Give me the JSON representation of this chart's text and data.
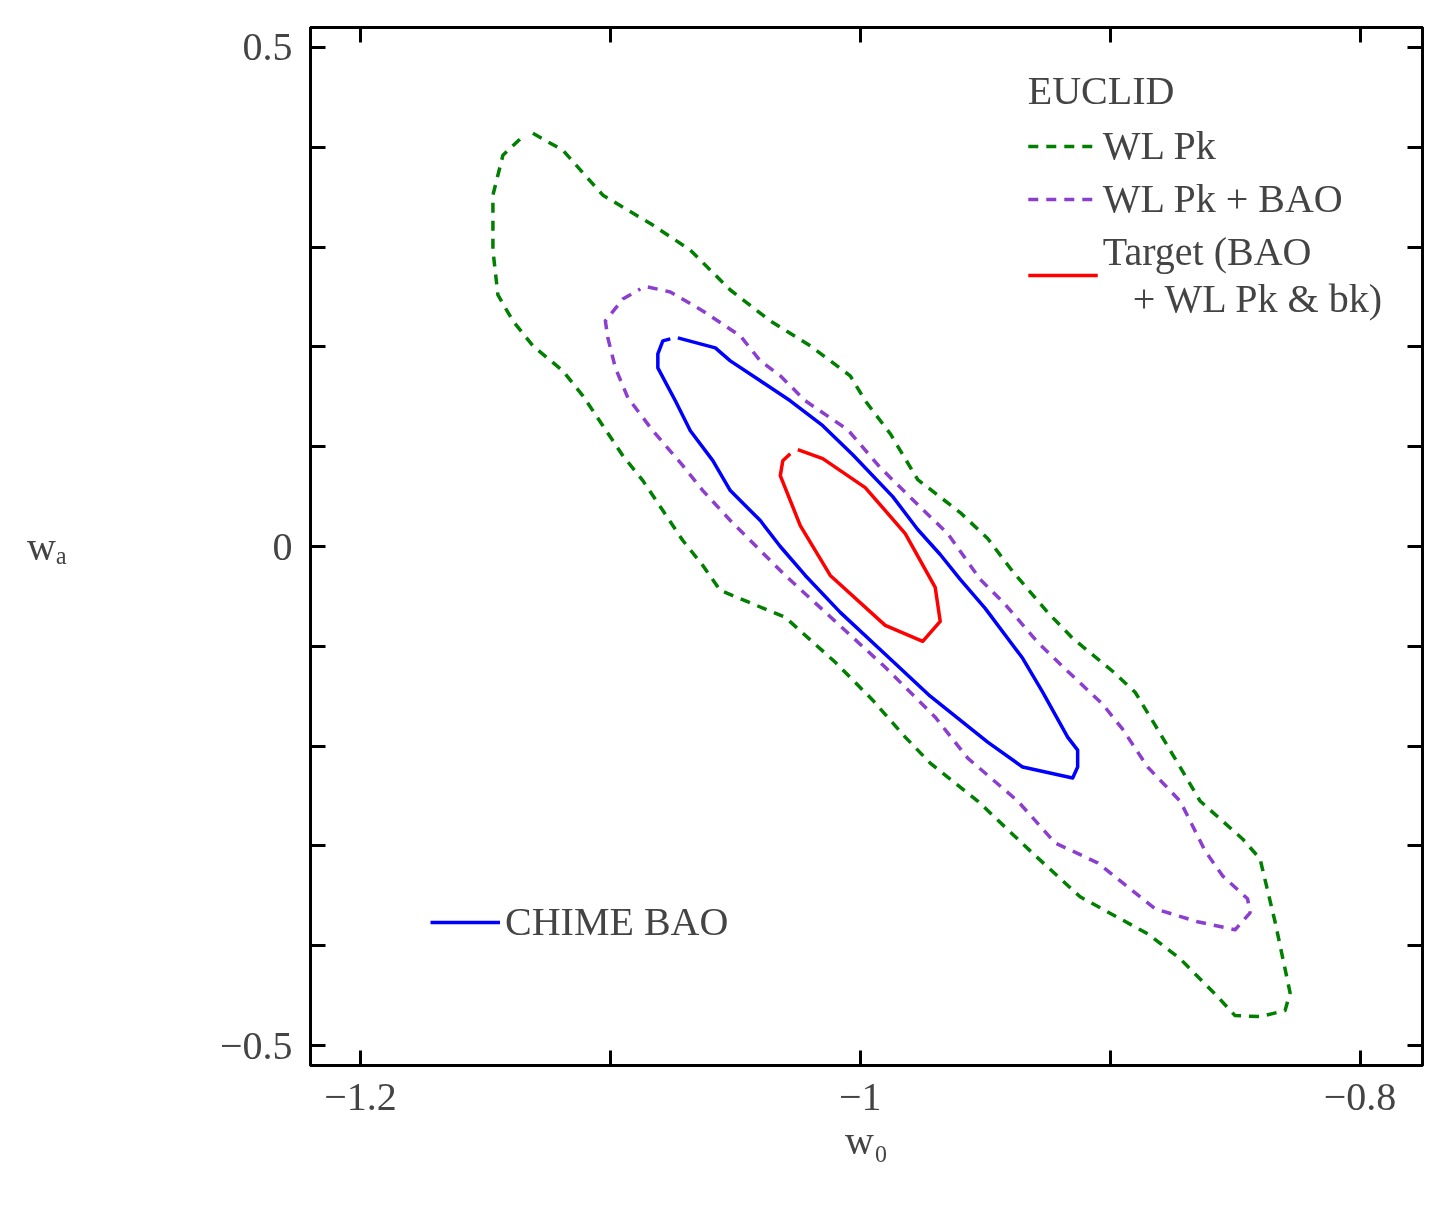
{
  "chart_data": {
    "type": "line",
    "xlabel": "w₀",
    "ylabel": "wₐ",
    "legend_title": "EUCLID",
    "legend": "top right",
    "grid": false,
    "marker": "none",
    "xlim": [
      -1.22,
      -0.775
    ],
    "ylim": [
      -0.52,
      0.52
    ],
    "xticks": [
      {
        "value": -1.2,
        "label": "−1.2"
      },
      {
        "value": -1.1,
        "label": null
      },
      {
        "value": -1.0,
        "label": "−1"
      },
      {
        "value": -0.9,
        "label": null
      },
      {
        "value": -0.8,
        "label": "−0.8"
      }
    ],
    "yticks": [
      {
        "value": -0.5,
        "label": "−0.5"
      },
      {
        "value": -0.4,
        "label": null
      },
      {
        "value": -0.3,
        "label": null
      },
      {
        "value": -0.2,
        "label": null
      },
      {
        "value": -0.1,
        "label": null
      },
      0,
      {
        "value": 0.1,
        "label": null
      },
      {
        "value": 0.2,
        "label": null
      },
      {
        "value": 0.3,
        "label": null
      },
      {
        "value": 0.4,
        "label": null
      },
      0.5
    ],
    "series": [
      {
        "name": "WL Pk",
        "color": "#007f00",
        "line_style": "dashed",
        "x": [
          -1.131,
          -1.119,
          -1.103,
          -1.083,
          -1.068,
          -1.052,
          -1.036,
          -1.02,
          -1.004,
          -0.998,
          -0.988,
          -0.977,
          -0.96,
          -0.949,
          -0.939,
          -0.925,
          -0.915,
          -0.899,
          -0.89,
          -0.882,
          -0.872,
          -0.864,
          -0.847,
          -0.84,
          -0.834,
          -0.828,
          -0.83,
          -0.84,
          -0.85,
          -0.857,
          -0.872,
          -0.885,
          -0.912,
          -0.932,
          -0.953,
          -0.972,
          -0.982,
          -0.995,
          -1.01,
          -1.03,
          -1.056,
          -1.063,
          -1.071,
          -1.079,
          -1.087,
          -1.095,
          -1.103,
          -1.111,
          -1.119,
          -1.131,
          -1.139,
          -1.145,
          -1.147,
          -1.147,
          -1.143,
          -1.135
        ],
        "values": [
          0.414,
          0.397,
          0.352,
          0.322,
          0.297,
          0.257,
          0.226,
          0.201,
          0.171,
          0.146,
          0.113,
          0.067,
          0.034,
          0.008,
          -0.025,
          -0.066,
          -0.092,
          -0.125,
          -0.146,
          -0.179,
          -0.221,
          -0.255,
          -0.293,
          -0.313,
          -0.376,
          -0.447,
          -0.465,
          -0.471,
          -0.47,
          -0.451,
          -0.413,
          -0.388,
          -0.351,
          -0.305,
          -0.255,
          -0.217,
          -0.191,
          -0.154,
          -0.116,
          -0.071,
          -0.044,
          -0.019,
          0.006,
          0.036,
          0.066,
          0.091,
          0.121,
          0.151,
          0.176,
          0.201,
          0.226,
          0.252,
          0.297,
          0.352,
          0.392,
          0.411
        ]
      },
      {
        "name": "WL Pk + BAO",
        "color": "#8c3fcf",
        "line_style": "dashed",
        "x": [
          -1.085,
          -1.076,
          -1.063,
          -1.048,
          -1.04,
          -1.032,
          -1.022,
          -1.005,
          -0.992,
          -0.977,
          -0.965,
          -0.952,
          -0.942,
          -0.929,
          -0.917,
          -0.903,
          -0.895,
          -0.885,
          -0.872,
          -0.862,
          -0.855,
          -0.845,
          -0.844,
          -0.85,
          -0.865,
          -0.882,
          -0.905,
          -0.922,
          -0.937,
          -0.957,
          -0.97,
          -0.99,
          -1.01,
          -1.03,
          -1.04,
          -1.052,
          -1.063,
          -1.071,
          -1.083,
          -1.093,
          -1.098,
          -1.101,
          -1.102,
          -1.095,
          -1.088
        ],
        "values": [
          0.26,
          0.255,
          0.236,
          0.211,
          0.186,
          0.171,
          0.146,
          0.117,
          0.079,
          0.042,
          0.013,
          -0.033,
          -0.058,
          -0.096,
          -0.125,
          -0.158,
          -0.183,
          -0.221,
          -0.255,
          -0.305,
          -0.33,
          -0.353,
          -0.367,
          -0.384,
          -0.376,
          -0.363,
          -0.317,
          -0.297,
          -0.255,
          -0.212,
          -0.171,
          -0.121,
          -0.075,
          -0.029,
          -0.004,
          0.026,
          0.056,
          0.081,
          0.116,
          0.149,
          0.179,
          0.209,
          0.226,
          0.248,
          0.258
        ]
      },
      {
        "name": "Target (BAO\n   + WL Pk & bk)",
        "color": "#ff0000",
        "line_style": "solid",
        "x": [
          -1.025,
          -1.015,
          -0.998,
          -0.982,
          -0.97,
          -0.968,
          -0.975,
          -0.99,
          -1.012,
          -1.024,
          -1.032,
          -1.031,
          -1.028
        ],
        "values": [
          0.097,
          0.088,
          0.059,
          0.013,
          -0.041,
          -0.075,
          -0.095,
          -0.079,
          -0.029,
          0.021,
          0.071,
          0.086,
          0.093
        ]
      },
      {
        "name": "CHIME BAO",
        "color": "#0000ff",
        "line_style": "solid",
        "x": [
          -1.073,
          -1.058,
          -1.052,
          -1.04,
          -1.028,
          -1.015,
          -1.003,
          -0.987,
          -0.977,
          -0.968,
          -0.96,
          -0.95,
          -0.935,
          -0.927,
          -0.917,
          -0.913,
          -0.913,
          -0.915,
          -0.935,
          -0.949,
          -0.972,
          -0.99,
          -1.008,
          -1.022,
          -1.032,
          -1.04,
          -1.052,
          -1.059,
          -1.068,
          -1.074,
          -1.081,
          -1.081,
          -1.079,
          -1.076
        ],
        "values": [
          0.209,
          0.199,
          0.186,
          0.166,
          0.146,
          0.121,
          0.092,
          0.05,
          0.017,
          -0.008,
          -0.033,
          -0.062,
          -0.112,
          -0.146,
          -0.191,
          -0.204,
          -0.221,
          -0.232,
          -0.221,
          -0.196,
          -0.15,
          -0.108,
          -0.066,
          -0.029,
          0.0,
          0.026,
          0.056,
          0.086,
          0.116,
          0.146,
          0.179,
          0.193,
          0.206,
          0.208
        ]
      }
    ]
  }
}
